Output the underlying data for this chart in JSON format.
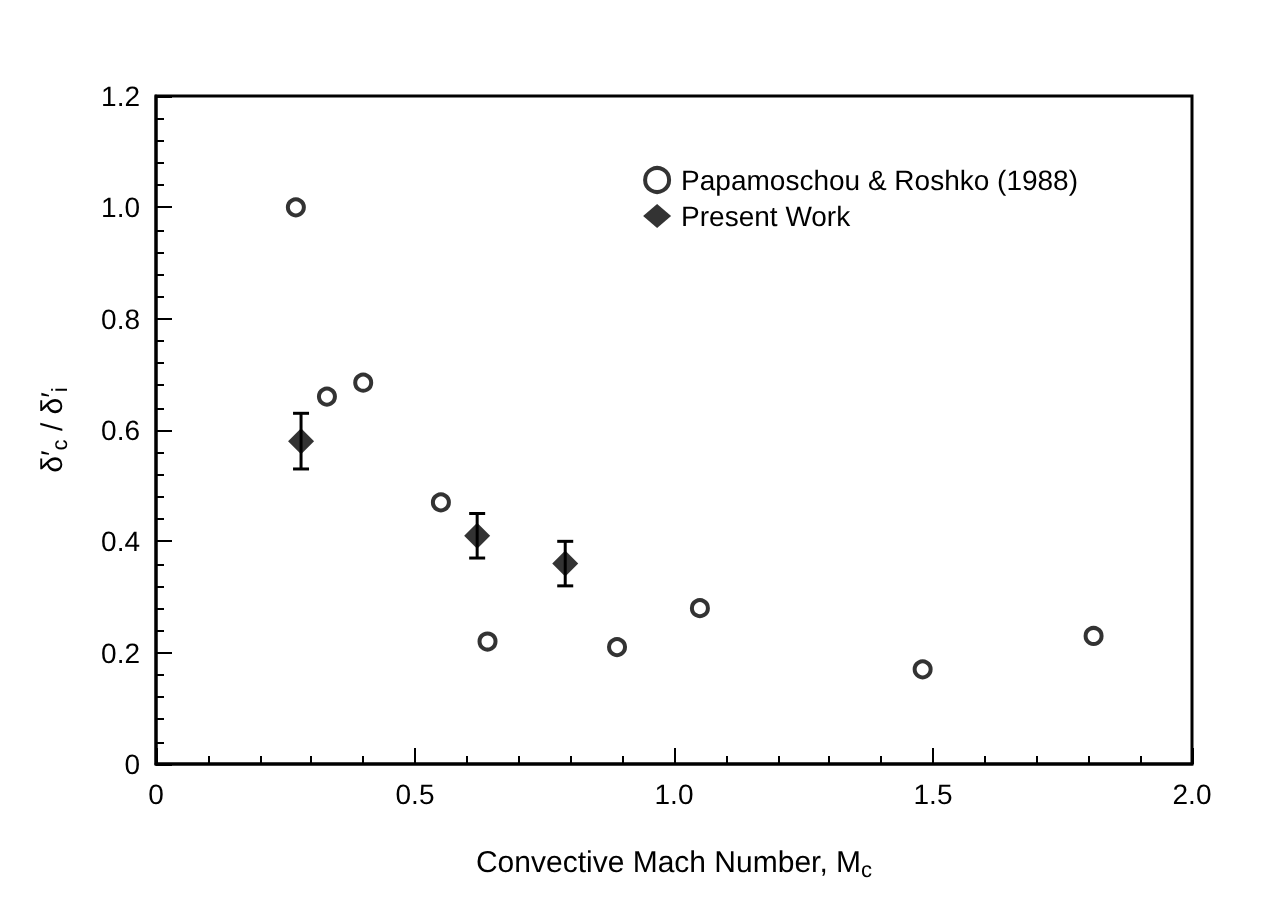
{
  "chart_data": {
    "type": "scatter",
    "xlabel": "Convective Mach Number, M$_{c}$",
    "ylabel": "δ′$_{c}$ / δ′$_{i}$",
    "xlim": [
      0,
      2.0
    ],
    "xticks": [
      0,
      {
        "value": 0.5,
        "label": "0.5"
      },
      {
        "value": 1.0,
        "label": "1.0"
      },
      {
        "value": 1.5,
        "label": "1.5"
      },
      {
        "value": 2.0,
        "label": "2.0"
      }
    ],
    "ylim": [
      0,
      1.2
    ],
    "yticks": [
      0,
      {
        "value": 0.2,
        "label": "0.2"
      },
      {
        "value": 0.4,
        "label": "0.4"
      },
      {
        "value": 0.6,
        "label": "0.6"
      },
      {
        "value": 0.8,
        "label": "0.8"
      },
      {
        "value": 1.0,
        "label": "1.0"
      },
      {
        "value": 1.2,
        "label": "1.2"
      }
    ],
    "grid": false,
    "legend": "top right",
    "series": [
      {
        "name": "Papamoschou & Roshko (1988)",
        "color": "#000000",
        "marker": "circle",
        "x": [
          0.27,
          0.33,
          0.4,
          0.55,
          0.64,
          0.89,
          1.05,
          1.48,
          1.81
        ],
        "values": [
          1.0,
          0.66,
          0.685,
          0.47,
          0.22,
          0.21,
          0.28,
          0.17,
          0.23
        ]
      },
      {
        "name": "Present Work",
        "color": "#000000",
        "marker": "diamond",
        "x": [
          0.28,
          0.62,
          0.79
        ],
        "values": [
          0.58,
          0.41,
          0.36
        ],
        "errors": [
          [
            0.53,
            0.63
          ],
          [
            0.37,
            0.45
          ],
          [
            0.32,
            0.4
          ]
        ]
      }
    ]
  }
}
